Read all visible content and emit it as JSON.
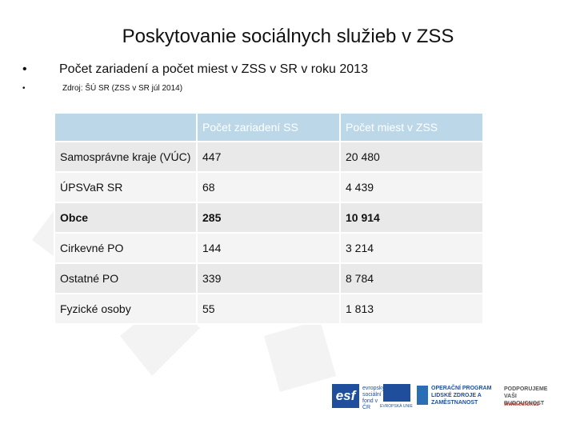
{
  "header": {
    "title": "Poskytovanie sociálnych služieb v ZSS",
    "bullet": "Počet zariadení a počet miest v ZSS v SR v roku 2013",
    "source": "Zdroj: ŠÚ SR (ZSS v SR júl 2014)"
  },
  "table": {
    "columns": [
      "",
      "Počet zariadení SS",
      "Počet miest v ZSS"
    ],
    "rows": [
      [
        "Samosprávne kraje (VÚC)",
        "447",
        "20 480"
      ],
      [
        "ÚPSVaR SR",
        "68",
        "4 439"
      ],
      [
        "Obce",
        "285",
        "10 914"
      ],
      [
        "Cirkevné PO",
        "144",
        "3 214"
      ],
      [
        "Ostatné PO",
        "339",
        "8 784"
      ],
      [
        "Fyzické osoby",
        "55",
        "1 813"
      ]
    ]
  },
  "footer": {
    "esf": "esf",
    "esf_text": "evropský sociální fond v ČR",
    "eu": "EVROPSKÁ UNIE",
    "op": "OPERAČNÍ PROGRAM LIDSKÉ ZDROJE A ZAMĚSTNANOST",
    "slogan": "PODPORUJEME VAŠI BUDOUCNOST",
    "url": "www.esfcr.cz"
  }
}
